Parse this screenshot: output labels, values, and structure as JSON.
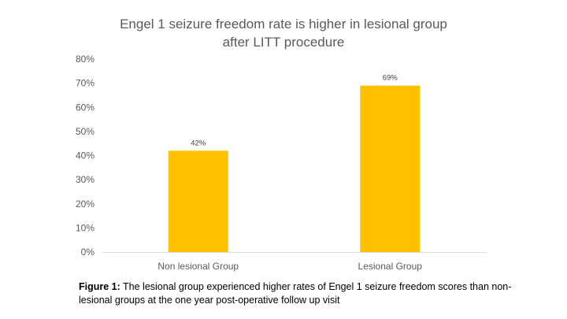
{
  "chart_data": {
    "type": "bar",
    "title_lines": [
      "Engel 1 seizure freedom rate is higher in lesional group",
      "after LITT procedure"
    ],
    "categories": [
      "Non lesional Group",
      "Lesional Group"
    ],
    "values": [
      42,
      69
    ],
    "data_labels": [
      "42%",
      "69%"
    ],
    "xlabel": "",
    "ylabel": "",
    "ylim": [
      0,
      80
    ],
    "yticks": [
      0,
      10,
      20,
      30,
      40,
      50,
      60,
      70,
      80
    ],
    "ytick_labels": [
      "0%",
      "10%",
      "20%",
      "30%",
      "40%",
      "50%",
      "60%",
      "70%",
      "80%"
    ],
    "grid": false,
    "legend": "none",
    "bar_color": "#FFC000"
  },
  "caption": {
    "label": "Figure 1:",
    "text": " The lesional group experienced higher rates of Engel 1 seizure freedom scores than non-lesional groups at the one year post-operative follow up visit"
  }
}
